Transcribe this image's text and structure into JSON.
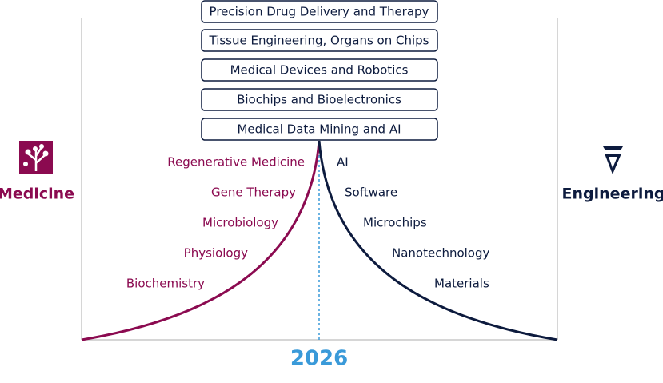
{
  "boxes": [
    "Precision Drug Delivery and Therapy",
    "Tissue Engineering, Organs on Chips",
    "Medical Devices and Robotics",
    "Biochips and Bioelectronics",
    "Medical Data Mining and AI"
  ],
  "medicine": {
    "label": "Medicine",
    "fields": [
      "Regenerative Medicine",
      "Gene Therapy",
      "Microbiology",
      "Physiology",
      "Biochemistry"
    ]
  },
  "engineering": {
    "label": "Engineering",
    "fields": [
      "AI",
      "Software",
      "Microchips",
      "Nanotechnology",
      "Materials"
    ]
  },
  "year": "2026"
}
